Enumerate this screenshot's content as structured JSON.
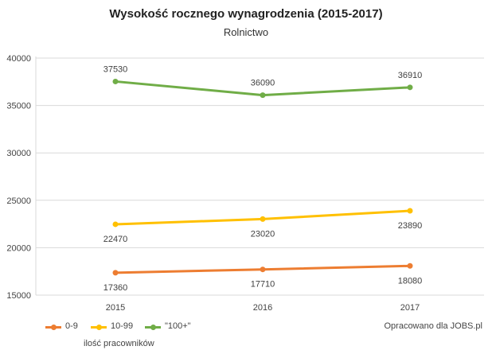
{
  "chart_data": {
    "type": "line",
    "title": "Wysokość rocznego wynagrodzenia (2015-2017)",
    "subtitle": "Rolnictwo",
    "categories": [
      "2015",
      "2016",
      "2017"
    ],
    "series": [
      {
        "name": "0-9",
        "values": [
          17360,
          17710,
          18080
        ],
        "color": "#ed7d31",
        "label_position": "below"
      },
      {
        "name": "10-99",
        "values": [
          22470,
          23020,
          23890
        ],
        "color": "#ffc000",
        "label_position": "below"
      },
      {
        "name": "\"100+\"",
        "values": [
          37530,
          36090,
          36910
        ],
        "color": "#70ad47",
        "label_position": "above"
      }
    ],
    "ylim": [
      15000,
      40000
    ],
    "yticks": [
      "15000",
      "20000",
      "25000",
      "30000",
      "35000",
      "40000"
    ],
    "grid": true,
    "legend_position": "bottom-left",
    "legend_caption": "ilość pracowników",
    "source": "Opracowano dla JOBS.pl"
  }
}
